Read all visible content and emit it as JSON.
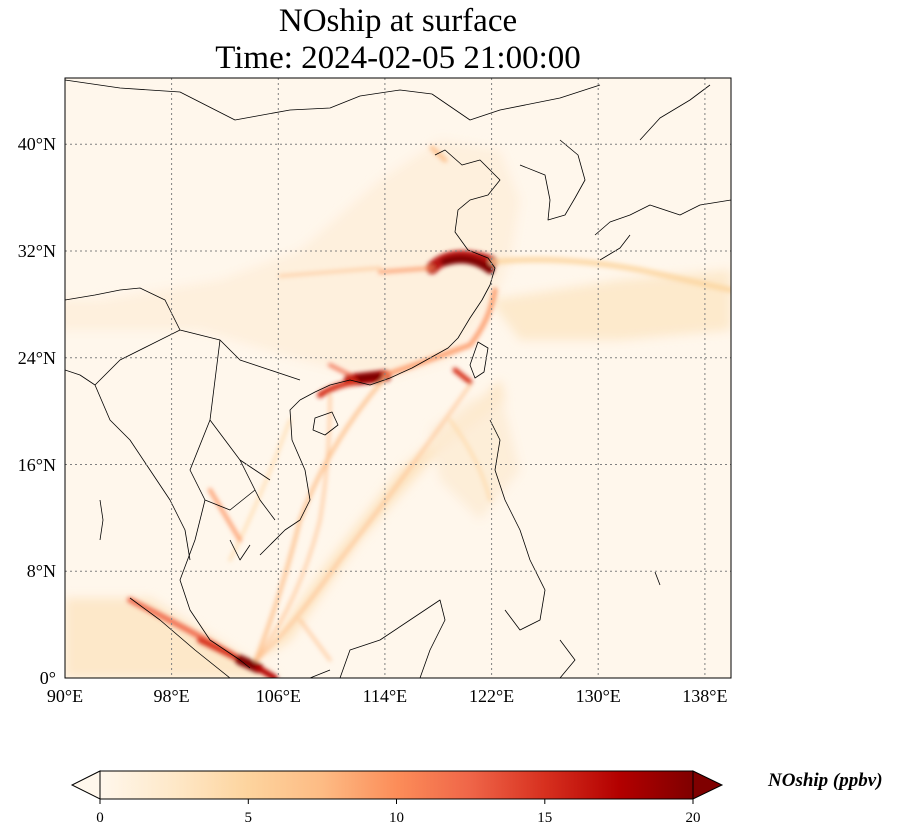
{
  "title": {
    "line1": "NOship at surface",
    "line2": "Time: 2024-02-05 21:00:00"
  },
  "map": {
    "variable": "NOship",
    "level": "surface",
    "lon_range": [
      90,
      139
    ],
    "lat_range": [
      0,
      44.5
    ],
    "lon_ticks": [
      "90°E",
      "98°E",
      "106°E",
      "114°E",
      "122°E",
      "130°E",
      "138°E"
    ],
    "lat_ticks": [
      "0°",
      "8°N",
      "16°N",
      "24°N",
      "32°N",
      "40°N"
    ],
    "gridlines": "dotted",
    "colormap": "OrRd",
    "background_color": "#fff7ec",
    "coastline_color": "#000000"
  },
  "colorbar": {
    "label": "NOship (ppbv)",
    "ticks": [
      "0",
      "5",
      "10",
      "15",
      "20"
    ],
    "range": [
      0,
      20
    ],
    "extend": "both",
    "colors": [
      "#fff7ec",
      "#fee8c8",
      "#fdd49e",
      "#fdbb84",
      "#fc8d59",
      "#ef6548",
      "#d7301f",
      "#b30000",
      "#7f0000"
    ]
  }
}
